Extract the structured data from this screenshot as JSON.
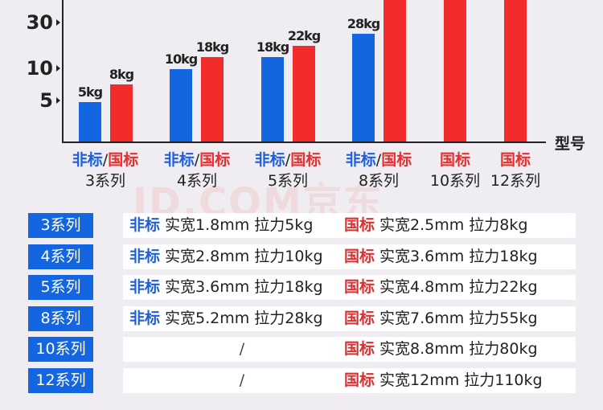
{
  "chart_data": {
    "type": "bar",
    "xlabel": "型号",
    "yticks": [
      "5",
      "10",
      "30"
    ],
    "categories": [
      {
        "std_blue": "非标",
        "sep": "/",
        "std_red": "国标",
        "series": "3系列"
      },
      {
        "std_blue": "非标",
        "sep": "/",
        "std_red": "国标",
        "series": "4系列"
      },
      {
        "std_blue": "非标",
        "sep": "/",
        "std_red": "国标",
        "series": "5系列"
      },
      {
        "std_blue": "非标",
        "sep": "/",
        "std_red": "国标",
        "series": "8系列"
      },
      {
        "std_blue": "",
        "sep": "",
        "std_red": "国标",
        "series": "10系列"
      },
      {
        "std_blue": "",
        "sep": "",
        "std_red": "国标",
        "series": "12系列"
      }
    ],
    "series": [
      {
        "name": "非标",
        "color": "#1466e0",
        "values": [
          5,
          10,
          18,
          28,
          null,
          null
        ],
        "labels": [
          "5kg",
          "10kg",
          "18kg",
          "28kg",
          "",
          ""
        ]
      },
      {
        "name": "国标",
        "color": "#f22c2c",
        "values": [
          8,
          18,
          22,
          55,
          80,
          110
        ],
        "labels": [
          "8kg",
          "18kg",
          "22kg",
          "",
          "",
          ""
        ]
      }
    ],
    "scale": "nonlinear"
  },
  "watermark": "JD.COM京东",
  "table": {
    "rows": [
      {
        "series": "3系列",
        "left_std": "非标",
        "left_spec": "实宽1.8mm 拉力5kg",
        "right_std": "国标",
        "right_spec": "实宽2.5mm 拉力8kg"
      },
      {
        "series": "4系列",
        "left_std": "非标",
        "left_spec": "实宽2.8mm 拉力10kg",
        "right_std": "国标",
        "right_spec": "实宽3.6mm 拉力18kg"
      },
      {
        "series": "5系列",
        "left_std": "非标",
        "left_spec": "实宽3.6mm 拉力18kg",
        "right_std": "国标",
        "right_spec": "实宽4.8mm 拉力22kg"
      },
      {
        "series": "8系列",
        "left_std": "非标",
        "left_spec": "实宽5.2mm 拉力28kg",
        "right_std": "国标",
        "right_spec": "实宽7.6mm 拉力55kg"
      },
      {
        "series": "10系列",
        "left_std": "",
        "left_spec": "/",
        "right_std": "国标",
        "right_spec": "实宽8.8mm 拉力80kg"
      },
      {
        "series": "12系列",
        "left_std": "",
        "left_spec": "/",
        "right_std": "国标",
        "right_spec": "实宽12mm 拉力110kg"
      }
    ]
  }
}
